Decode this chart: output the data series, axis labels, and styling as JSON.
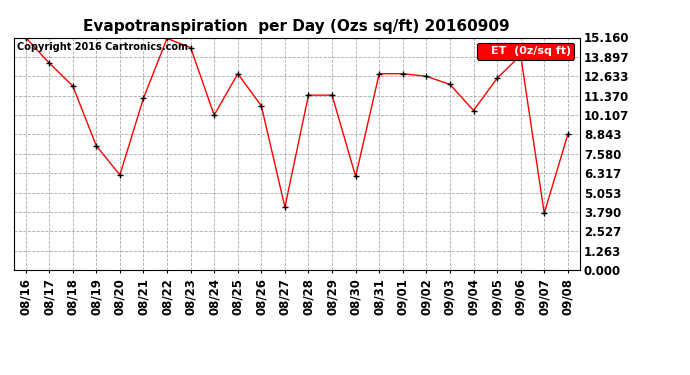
{
  "title": "Evapotranspiration  per Day (Ozs sq/ft) 20160909",
  "copyright": "Copyright 2016 Cartronics.com",
  "legend_label": "ET  (0z/sq ft)",
  "dates": [
    "08/16",
    "08/17",
    "08/18",
    "08/19",
    "08/20",
    "08/21",
    "08/22",
    "08/23",
    "08/24",
    "08/25",
    "08/26",
    "08/27",
    "08/28",
    "08/29",
    "08/30",
    "08/31",
    "09/01",
    "09/02",
    "09/03",
    "09/04",
    "09/05",
    "09/06",
    "09/07",
    "09/08"
  ],
  "values": [
    15.16,
    13.5,
    12.0,
    8.1,
    6.2,
    11.2,
    15.1,
    14.5,
    10.1,
    12.8,
    10.7,
    4.1,
    11.4,
    11.4,
    6.1,
    12.8,
    12.8,
    12.63,
    12.1,
    10.4,
    12.5,
    14.0,
    3.7,
    8.84
  ],
  "line_color": "#ff0000",
  "marker_color": "#000000",
  "bg_color": "#ffffff",
  "plot_bg_color": "#ffffff",
  "grid_color": "#aaaaaa",
  "ylim": [
    0.0,
    15.16
  ],
  "yticks": [
    0.0,
    1.263,
    2.527,
    3.79,
    5.053,
    6.317,
    7.58,
    8.843,
    10.107,
    11.37,
    12.633,
    13.897,
    15.16
  ],
  "title_fontsize": 11,
  "copyright_fontsize": 7,
  "tick_fontsize": 8.5,
  "legend_fontsize": 8
}
